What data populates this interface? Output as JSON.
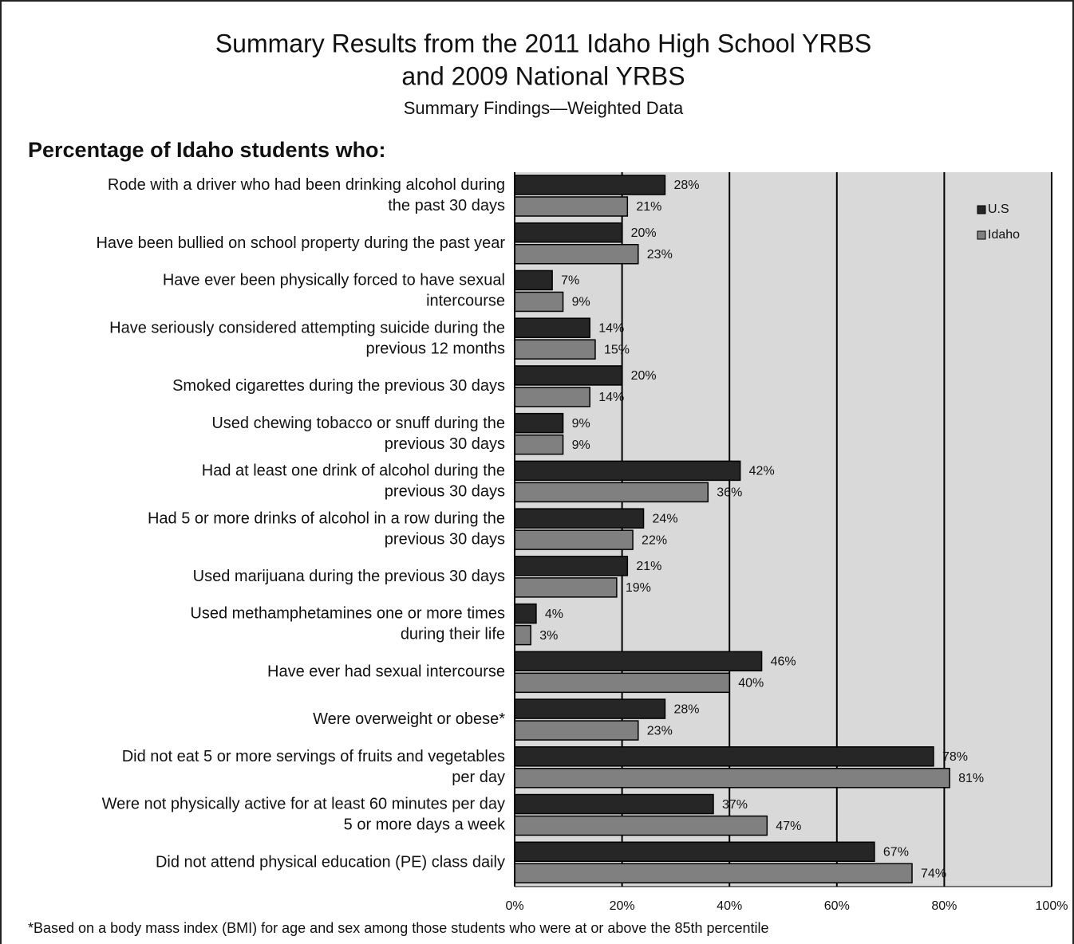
{
  "chart_data": {
    "type": "hbar",
    "title": "Summary Results from the 2011 Idaho High School YRBS",
    "title2": "and 2009 National YRBS",
    "subtitle": "Summary Findings—Weighted Data",
    "heading": "Percentage of Idaho students who:",
    "note": "*Based on a body mass index (BMI) for age and sex among those students who were at or above the 85th percentile",
    "categories": [
      [
        "Rode with a driver who had been drinking alcohol during",
        "the past 30 days"
      ],
      [
        "Have been bullied on school property during the past year"
      ],
      [
        "Have ever been physically forced to have sexual",
        "intercourse"
      ],
      [
        "Have seriously considered attempting suicide during the",
        "previous 12 months"
      ],
      [
        "Smoked cigarettes during the previous 30 days"
      ],
      [
        "Used chewing tobacco or snuff during the",
        "previous 30 days"
      ],
      [
        "Had at least one drink of alcohol during the",
        "previous 30 days"
      ],
      [
        "Had 5 or more drinks of alcohol in a row during the",
        "previous 30 days"
      ],
      [
        "Used marijuana during the previous 30 days"
      ],
      [
        "Used methamphetamines one or more times",
        "during their life"
      ],
      [
        "Have ever had sexual intercourse"
      ],
      [
        "Were overweight or obese*"
      ],
      [
        "Did not eat 5 or more servings of fruits and vegetables",
        "per day"
      ],
      [
        "Were not physically active for at least 60 minutes per day",
        "5 or more days a week"
      ],
      [
        "Did not attend physical education (PE) class daily"
      ]
    ],
    "series": [
      {
        "name": "U.S",
        "color": "#262626",
        "values": [
          28,
          20,
          7,
          14,
          20,
          9,
          42,
          24,
          21,
          4,
          46,
          28,
          78,
          37,
          67
        ],
        "value_labels": [
          "28%",
          "20%",
          "7%",
          "14%",
          "20%",
          "9%",
          "42%",
          "24%",
          "21%",
          "4%",
          "46%",
          "28%",
          "78%",
          "37%",
          "67%"
        ]
      },
      {
        "name": "Idaho",
        "color": "#808080",
        "values": [
          21,
          23,
          9,
          15,
          14,
          9,
          36,
          22,
          19,
          3,
          40,
          23,
          81,
          47,
          74
        ],
        "value_labels": [
          "21%",
          "23%",
          "9%",
          "15%",
          "14%",
          "9%",
          "36%",
          "22%",
          "19%",
          "3%",
          "40%",
          "23%",
          "81%",
          "47%",
          "74%"
        ]
      }
    ],
    "xlim": [
      0,
      100
    ],
    "xticks": [
      {
        "value": 0,
        "label": "0%"
      },
      {
        "value": 20,
        "label": "20%"
      },
      {
        "value": 40,
        "label": "40%"
      },
      {
        "value": 60,
        "label": "60%"
      },
      {
        "value": 80,
        "label": "80%"
      },
      {
        "value": 100,
        "label": "100%"
      }
    ],
    "grid": true,
    "plot_background": "#d9d9d9",
    "legend": "upper right"
  }
}
